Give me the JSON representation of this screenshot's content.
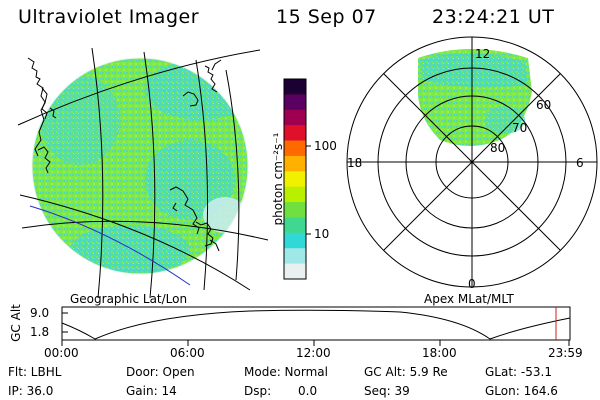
{
  "header": {
    "title": "Ultraviolet Imager",
    "date": "15 Sep 07",
    "time": "23:24:21 UT"
  },
  "geo_panel": {
    "caption": "Geographic Lat/Lon"
  },
  "color_scale": {
    "unit_label": "photon cm⁻²s⁻¹",
    "tick_labels": [
      "100",
      "10"
    ],
    "colors": [
      "#1a0033",
      "#5a0060",
      "#a00050",
      "#e0102a",
      "#ff6a00",
      "#ffb000",
      "#f0f000",
      "#b8f000",
      "#70e040",
      "#40d890",
      "#30d8d8",
      "#a0e8e8",
      "#e8f0f0"
    ]
  },
  "polar_panel": {
    "caption": "Apex MLat/MLT",
    "mlt_labels": [
      "12",
      "18",
      "6",
      "0"
    ],
    "lat_labels": [
      "60",
      "70",
      "80"
    ]
  },
  "alt_plot": {
    "ylabel": "GC Alt",
    "y_ticks": [
      "9.0",
      "1.8"
    ],
    "x_ticks": [
      "00:00",
      "06:00",
      "12:00",
      "18:00",
      "23:59"
    ],
    "marker_color": "#d02020"
  },
  "status": {
    "filter": "Flt: LBHL",
    "ip": "IP: 36.0",
    "door": "Door: Open",
    "gain": "Gain: 14",
    "mode": "Mode: Normal",
    "dsp_label": "Dsp:",
    "dsp_value": "0.0",
    "gc_alt": "GC Alt: 5.9 Re",
    "seq": "Seq: 39",
    "glat": "GLat: -53.1",
    "glon": "GLon: 164.6"
  },
  "colors": {
    "aurora_green": "#7ce84a",
    "aurora_cyan": "#40d8d0",
    "coast_line": "#000000",
    "track_line": "#2233cc"
  }
}
